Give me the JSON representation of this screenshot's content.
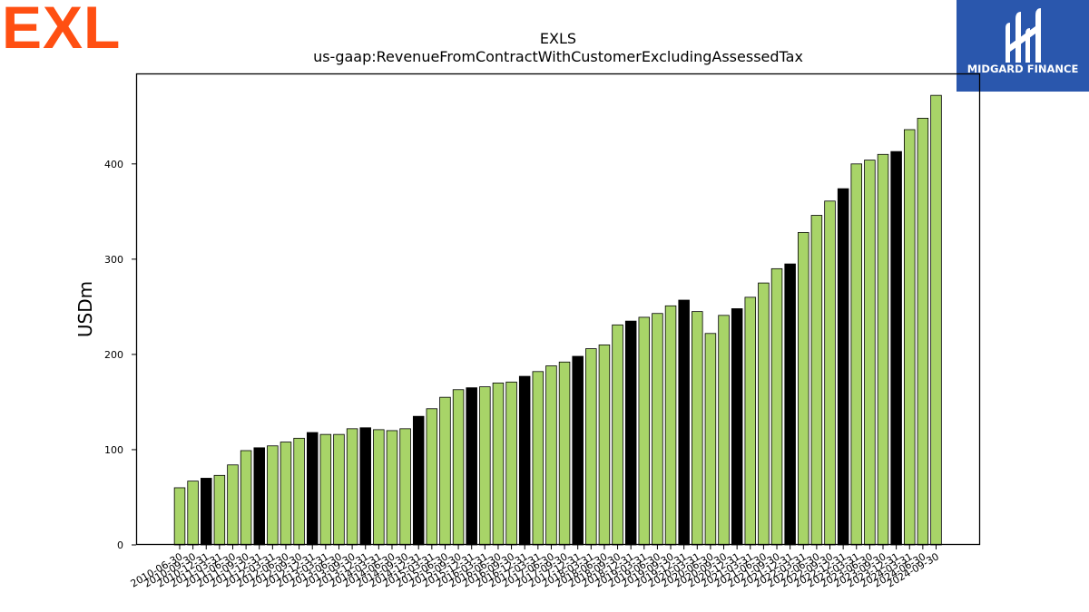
{
  "branding": {
    "logo_text": "EXL",
    "logo_color": "#ff4f12",
    "partner_name": "MIDGARD FINANCE",
    "partner_color": "#2a57ad"
  },
  "chart_data": {
    "type": "bar",
    "title": "EXLS",
    "subtitle": "us-gaap:RevenueFromContractWithCustomerExcludingAssessedTax",
    "xlabel": "",
    "ylabel": "USDm",
    "ylim": [
      0,
      495
    ],
    "yticks": [
      0,
      100,
      200,
      300,
      400
    ],
    "grid": false,
    "colors": {
      "quarter": "#a8d468",
      "fiscal_year_end": "#000000"
    },
    "categories": [
      "2010-06-30",
      "2010-09-30",
      "2010-12-31",
      "2011-03-31",
      "2011-06-30",
      "2011-09-30",
      "2011-12-31",
      "2012-03-31",
      "2012-06-30",
      "2012-09-30",
      "2012-12-31",
      "2013-03-31",
      "2013-06-30",
      "2013-09-30",
      "2013-12-31",
      "2014-03-31",
      "2014-06-30",
      "2014-09-30",
      "2014-12-31",
      "2015-03-31",
      "2015-06-30",
      "2015-09-30",
      "2015-12-31",
      "2016-03-31",
      "2016-06-30",
      "2016-09-30",
      "2016-12-31",
      "2017-03-31",
      "2017-06-30",
      "2017-09-30",
      "2017-12-31",
      "2018-03-31",
      "2018-06-30",
      "2018-09-30",
      "2018-12-31",
      "2019-03-31",
      "2019-06-30",
      "2019-09-30",
      "2019-12-31",
      "2020-03-31",
      "2020-06-30",
      "2020-09-30",
      "2020-12-31",
      "2021-03-31",
      "2021-06-30",
      "2021-09-30",
      "2021-12-31",
      "2022-03-31",
      "2022-06-30",
      "2022-09-30",
      "2022-12-31",
      "2023-03-31",
      "2023-06-30",
      "2023-09-30",
      "2023-12-31",
      "2024-03-31",
      "2024-06-30",
      "2024-09-30"
    ],
    "values": [
      60,
      67,
      70,
      73,
      84,
      99,
      102,
      104,
      108,
      112,
      118,
      116,
      116,
      122,
      123,
      121,
      120,
      122,
      135,
      143,
      155,
      163,
      165,
      166,
      170,
      171,
      177,
      182,
      188,
      192,
      198,
      206,
      210,
      231,
      235,
      239,
      243,
      251,
      257,
      245,
      222,
      241,
      248,
      260,
      275,
      290,
      295,
      328,
      346,
      361,
      374,
      400,
      404,
      410,
      413,
      436,
      448,
      472
    ],
    "highlight": [
      false,
      false,
      true,
      false,
      false,
      false,
      true,
      false,
      false,
      false,
      true,
      false,
      false,
      false,
      true,
      false,
      false,
      false,
      true,
      false,
      false,
      false,
      true,
      false,
      false,
      false,
      true,
      false,
      false,
      false,
      true,
      false,
      false,
      false,
      true,
      false,
      false,
      false,
      true,
      false,
      false,
      false,
      true,
      false,
      false,
      false,
      true,
      false,
      false,
      false,
      true,
      false,
      false,
      false,
      true,
      false,
      false,
      false
    ]
  }
}
